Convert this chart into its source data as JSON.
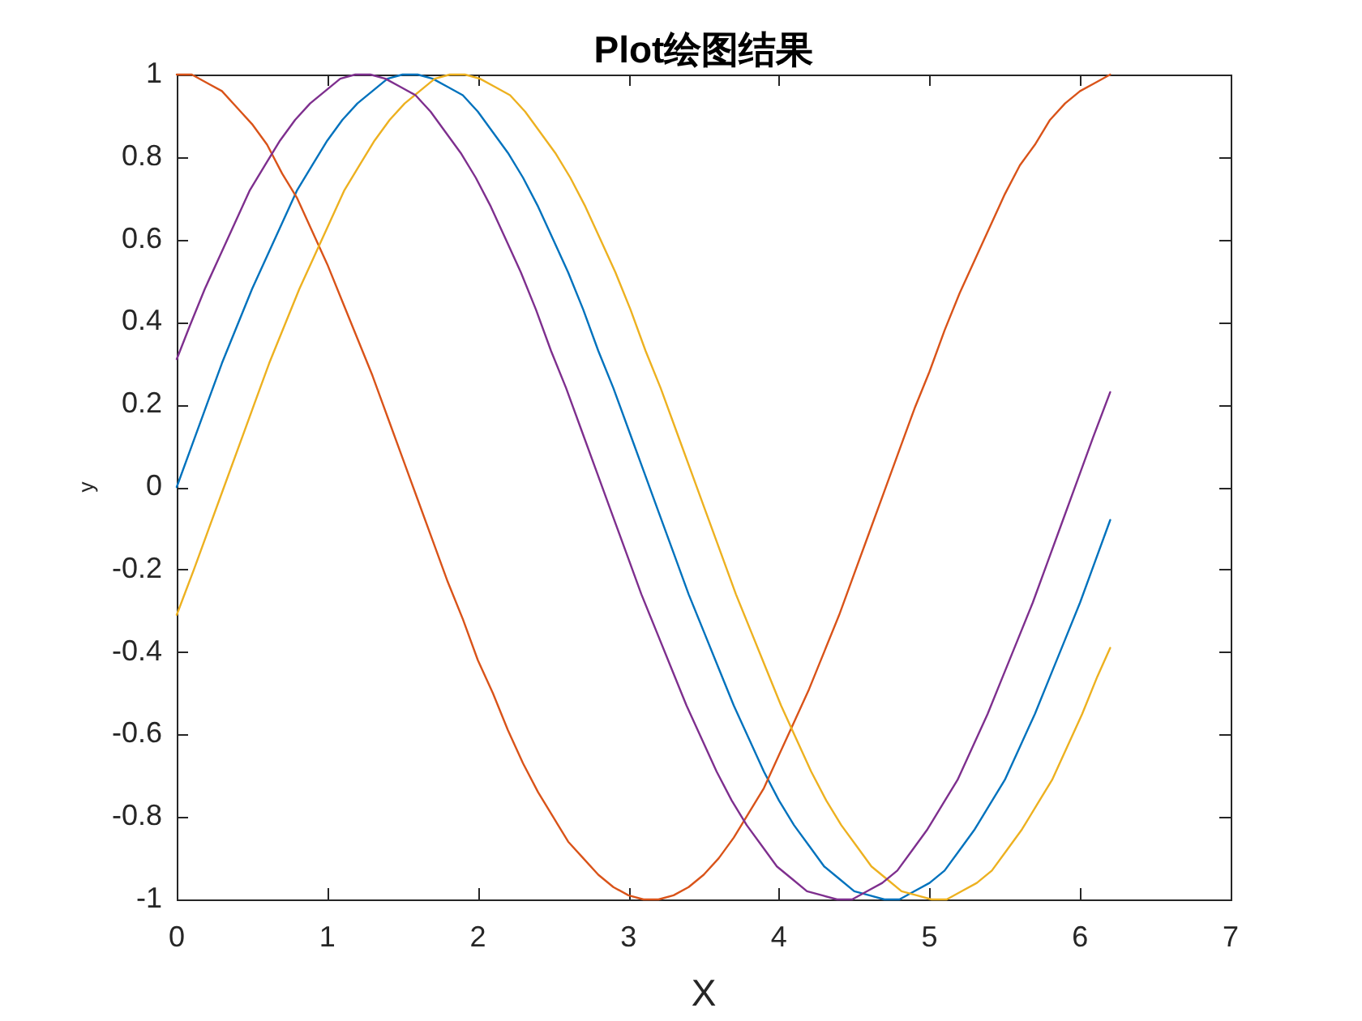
{
  "chart_data": {
    "type": "line",
    "title": "Plot绘图结果",
    "xlabel": "X",
    "ylabel": "y",
    "xlim": [
      0,
      7
    ],
    "xticks": [
      0,
      1,
      2,
      3,
      4,
      5,
      6,
      7
    ],
    "ylim": [
      -1,
      1
    ],
    "yticks": [
      -1,
      -0.8,
      -0.6,
      -0.4,
      -0.2,
      0,
      0.2,
      0.4,
      0.6,
      0.8,
      1
    ],
    "x": [
      0,
      0.1,
      0.2,
      0.3,
      0.4,
      0.5,
      0.6,
      0.7,
      0.8,
      0.9,
      1,
      1.1,
      1.2,
      1.3,
      1.4,
      1.5,
      1.6,
      1.7,
      1.8,
      1.9,
      2,
      2.1,
      2.2,
      2.3,
      2.4,
      2.5,
      2.6,
      2.7,
      2.8,
      2.9,
      3,
      3.1,
      3.2,
      3.3,
      3.4,
      3.5,
      3.6,
      3.7,
      3.8,
      3.9,
      4,
      4.1,
      4.2,
      4.3,
      4.4,
      4.5,
      4.6,
      4.7,
      4.8,
      4.9,
      5,
      5.1,
      5.2,
      5.3,
      5.4,
      5.5,
      5.6,
      5.7,
      5.8,
      5.9,
      6,
      6.1,
      6.2
    ],
    "series": [
      {
        "color": "#0072bd",
        "values": [
          0,
          0.1,
          0.2,
          0.3,
          0.39,
          0.48,
          0.56,
          0.64,
          0.72,
          0.78,
          0.84,
          0.89,
          0.93,
          0.96,
          0.99,
          1.0,
          1.0,
          0.99,
          0.97,
          0.95,
          0.91,
          0.86,
          0.81,
          0.75,
          0.68,
          0.6,
          0.52,
          0.43,
          0.33,
          0.24,
          0.14,
          0.04,
          -0.06,
          -0.16,
          -0.26,
          -0.35,
          -0.44,
          -0.53,
          -0.61,
          -0.69,
          -0.76,
          -0.82,
          -0.87,
          -0.92,
          -0.95,
          -0.98,
          -0.99,
          -1.0,
          -1.0,
          -0.98,
          -0.96,
          -0.93,
          -0.88,
          -0.83,
          -0.77,
          -0.71,
          -0.63,
          -0.55,
          -0.46,
          -0.37,
          -0.28,
          -0.18,
          -0.08
        ]
      },
      {
        "color": "#d95319",
        "values": [
          1.0,
          1.0,
          0.98,
          0.96,
          0.92,
          0.88,
          0.83,
          0.76,
          0.7,
          0.62,
          0.54,
          0.45,
          0.36,
          0.27,
          0.17,
          0.07,
          -0.03,
          -0.13,
          -0.23,
          -0.32,
          -0.42,
          -0.5,
          -0.59,
          -0.67,
          -0.74,
          -0.8,
          -0.86,
          -0.9,
          -0.94,
          -0.97,
          -0.99,
          -1.0,
          -1.0,
          -0.99,
          -0.97,
          -0.94,
          -0.9,
          -0.85,
          -0.79,
          -0.73,
          -0.65,
          -0.57,
          -0.49,
          -0.4,
          -0.31,
          -0.21,
          -0.11,
          -0.01,
          0.09,
          0.19,
          0.28,
          0.38,
          0.47,
          0.55,
          0.63,
          0.71,
          0.78,
          0.83,
          0.89,
          0.93,
          0.96,
          0.98,
          1.0
        ]
      },
      {
        "color": "#edb120",
        "x": [
          0,
          0.114,
          0.214,
          0.314,
          0.414,
          0.514,
          0.614,
          0.714,
          0.814,
          0.914,
          1.014,
          1.114,
          1.214,
          1.314,
          1.414,
          1.514,
          1.614,
          1.714,
          1.814,
          1.914,
          2.014,
          2.114,
          2.214,
          2.314,
          2.414,
          2.514,
          2.614,
          2.714,
          2.814,
          2.914,
          3.014,
          3.114,
          3.214,
          3.314,
          3.414,
          3.514,
          3.614,
          3.714,
          3.814,
          3.914,
          4.014,
          4.114,
          4.214,
          4.314,
          4.414,
          4.514,
          4.614,
          4.714,
          4.814,
          4.914,
          5.014,
          5.114,
          5.214,
          5.314,
          5.414,
          5.514,
          5.614,
          5.714,
          5.814,
          5.914,
          6.014,
          6.114,
          6.2
        ],
        "values": [
          -0.31,
          -0.2,
          -0.1,
          0,
          0.1,
          0.2,
          0.3,
          0.39,
          0.48,
          0.56,
          0.64,
          0.72,
          0.78,
          0.84,
          0.89,
          0.93,
          0.96,
          0.99,
          1.0,
          1.0,
          0.99,
          0.97,
          0.95,
          0.91,
          0.86,
          0.81,
          0.75,
          0.68,
          0.6,
          0.52,
          0.43,
          0.33,
          0.24,
          0.14,
          0.04,
          -0.06,
          -0.16,
          -0.26,
          -0.35,
          -0.44,
          -0.53,
          -0.61,
          -0.69,
          -0.76,
          -0.82,
          -0.87,
          -0.92,
          -0.95,
          -0.98,
          -0.99,
          -1.0,
          -1.0,
          -0.98,
          -0.96,
          -0.93,
          -0.88,
          -0.83,
          -0.77,
          -0.71,
          -0.63,
          -0.55,
          -0.46,
          -0.39
        ]
      },
      {
        "color": "#7e2f8e",
        "x": [
          0,
          0.086,
          0.186,
          0.286,
          0.386,
          0.486,
          0.586,
          0.686,
          0.786,
          0.886,
          0.986,
          1.086,
          1.186,
          1.286,
          1.386,
          1.486,
          1.586,
          1.686,
          1.786,
          1.886,
          1.986,
          2.086,
          2.186,
          2.286,
          2.386,
          2.486,
          2.586,
          2.686,
          2.786,
          2.886,
          2.986,
          3.086,
          3.186,
          3.286,
          3.386,
          3.486,
          3.586,
          3.686,
          3.786,
          3.886,
          3.986,
          4.086,
          4.186,
          4.286,
          4.386,
          4.486,
          4.586,
          4.686,
          4.786,
          4.886,
          4.986,
          5.086,
          5.186,
          5.286,
          5.386,
          5.486,
          5.586,
          5.686,
          5.786,
          5.886,
          5.986,
          6.086,
          6.2
        ],
        "values": [
          0.31,
          0.39,
          0.48,
          0.56,
          0.64,
          0.72,
          0.78,
          0.84,
          0.89,
          0.93,
          0.96,
          0.99,
          1.0,
          1.0,
          0.99,
          0.97,
          0.95,
          0.91,
          0.86,
          0.81,
          0.75,
          0.68,
          0.6,
          0.52,
          0.43,
          0.33,
          0.24,
          0.14,
          0.04,
          -0.06,
          -0.16,
          -0.26,
          -0.35,
          -0.44,
          -0.53,
          -0.61,
          -0.69,
          -0.76,
          -0.82,
          -0.87,
          -0.92,
          -0.95,
          -0.98,
          -0.99,
          -1.0,
          -1.0,
          -0.98,
          -0.96,
          -0.93,
          -0.88,
          -0.83,
          -0.77,
          -0.71,
          -0.63,
          -0.55,
          -0.46,
          -0.37,
          -0.28,
          -0.18,
          -0.08,
          0.02,
          0.12,
          0.23
        ]
      }
    ]
  }
}
